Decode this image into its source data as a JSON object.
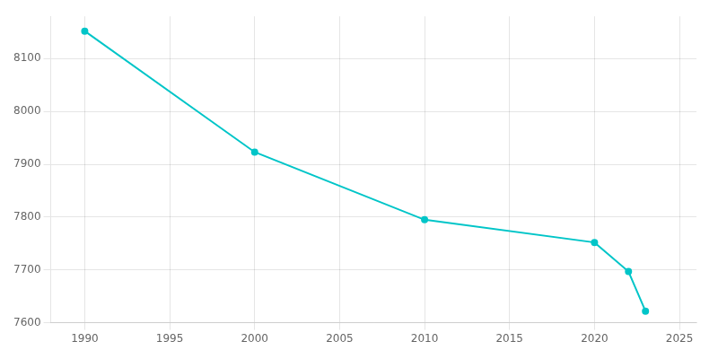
{
  "chart_data": {
    "type": "line",
    "x": [
      1990,
      2000,
      2010,
      2020,
      2022,
      2023
    ],
    "values": [
      8152,
      7923,
      7795,
      7752,
      7697,
      7622
    ],
    "color": "#00C5C8",
    "marker": "circle",
    "xlim": [
      1988,
      2026
    ],
    "ylim": [
      7600,
      8180
    ],
    "xticks": [
      1990,
      1995,
      2000,
      2005,
      2010,
      2015,
      2020,
      2025
    ],
    "yticks": [
      7600,
      7700,
      7800,
      7900,
      8000,
      8100
    ],
    "grid": true
  }
}
